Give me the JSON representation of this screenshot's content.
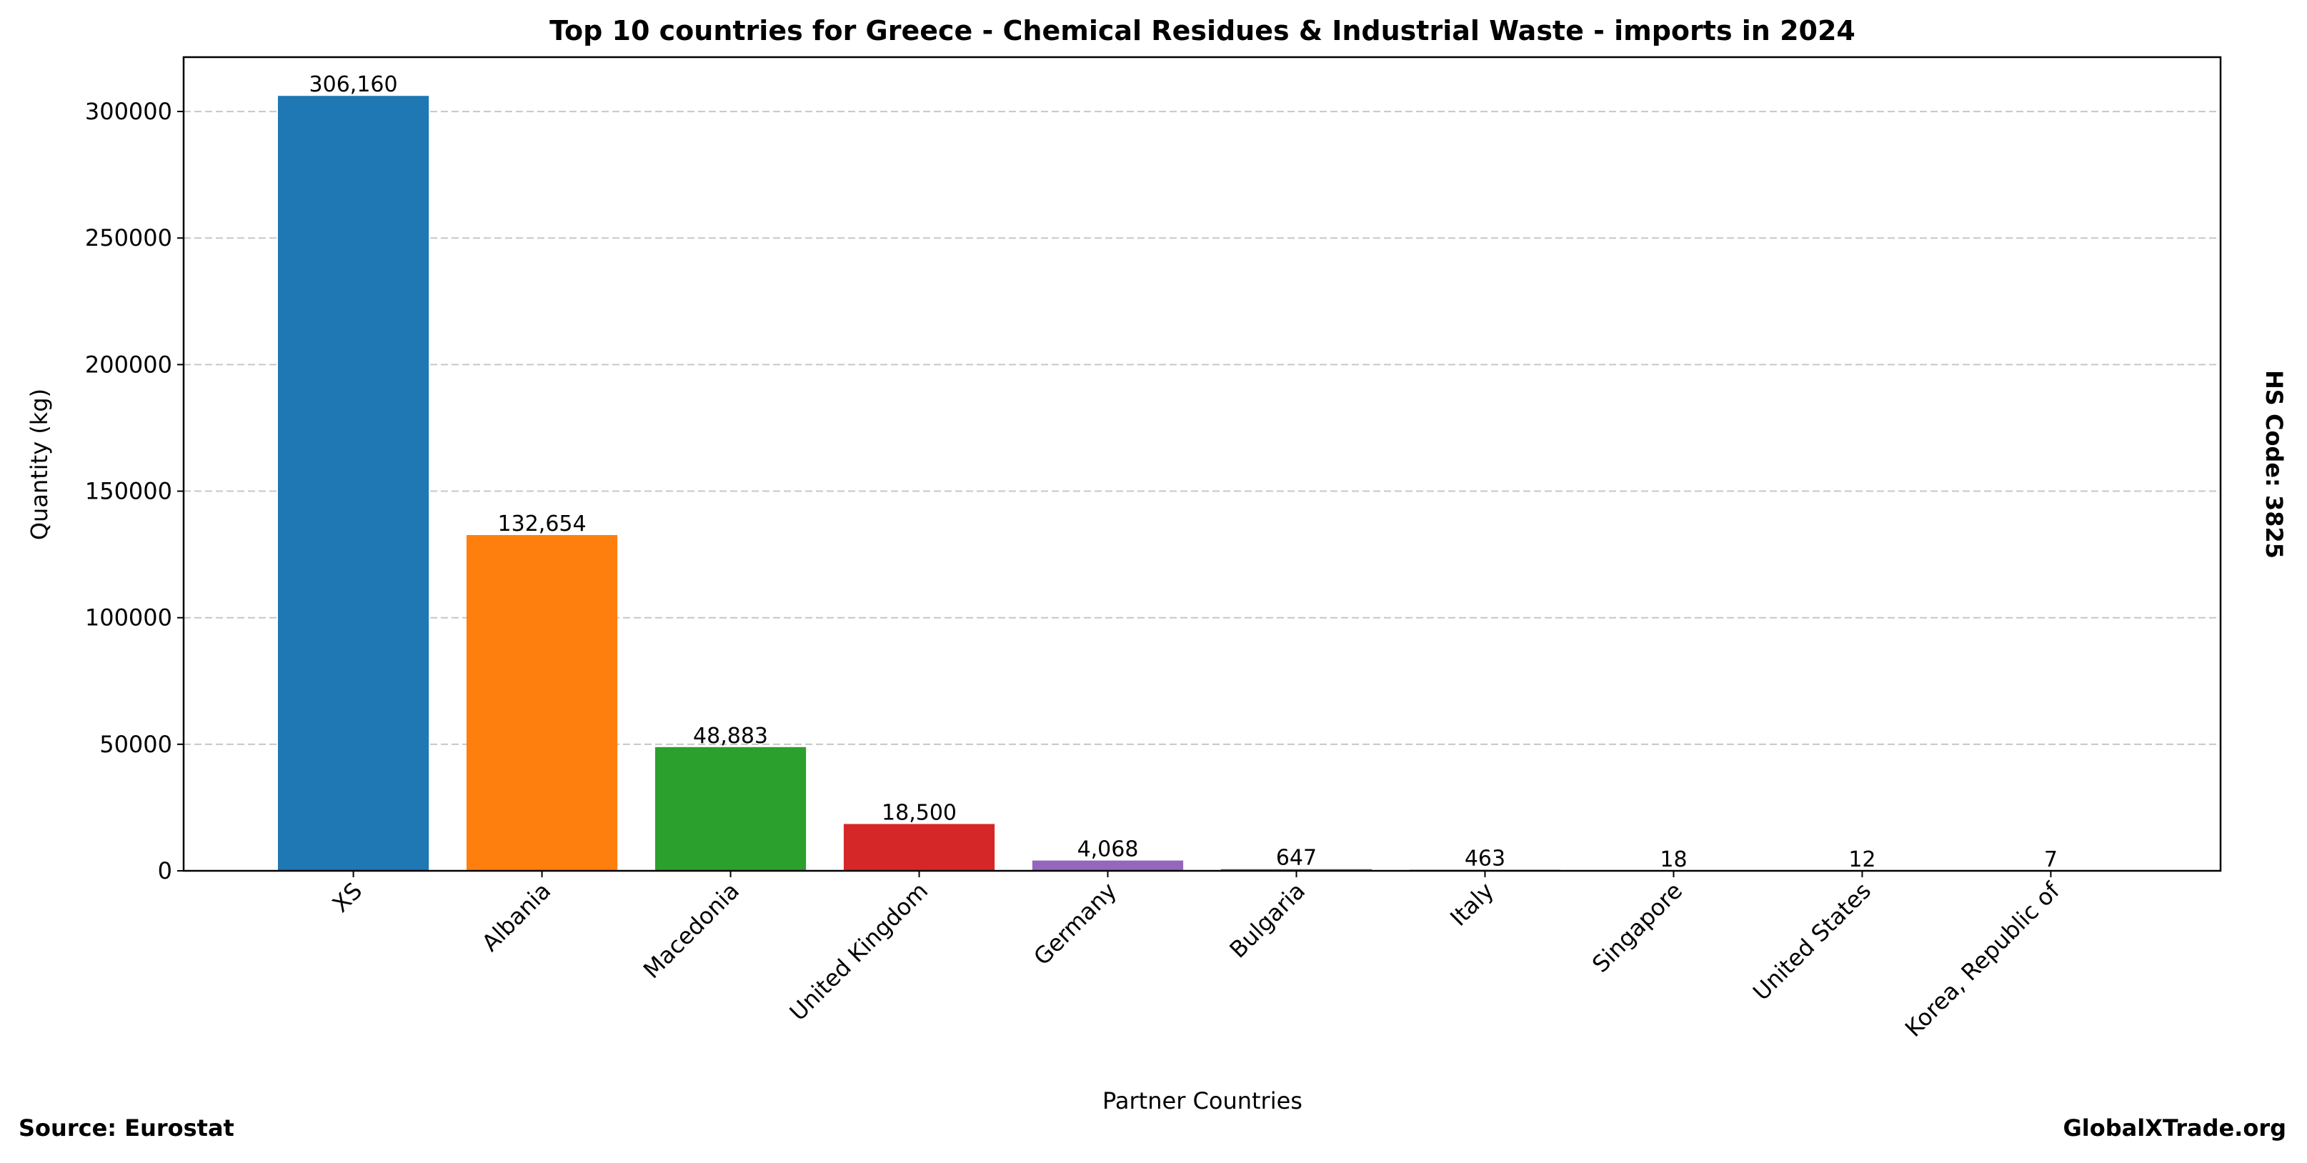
{
  "chart_data": {
    "type": "bar",
    "title": "Top 10 countries for Greece - Chemical Residues & Industrial Waste - imports in 2024",
    "xlabel": "Partner Countries",
    "ylabel": "Quantity (kg)",
    "categories": [
      "XS",
      "Albania",
      "Macedonia",
      "United Kingdom",
      "Germany",
      "Bulgaria",
      "Italy",
      "Singapore",
      "United States",
      "Korea, Republic of"
    ],
    "values": [
      306160,
      132654,
      48883,
      18500,
      4068,
      647,
      463,
      18,
      12,
      7
    ],
    "data_labels": [
      "306,160",
      "132,654",
      "48,883",
      "18,500",
      "4,068",
      "647",
      "463",
      "18",
      "12",
      "7"
    ],
    "colors": [
      "#1f77b4",
      "#ff7f0e",
      "#2ca02c",
      "#d62728",
      "#9467bd",
      "#8c564b",
      "#e377c2",
      "#7f7f7f",
      "#bcbd22",
      "#17becf"
    ],
    "ylim": [
      0,
      321468
    ],
    "yticks": [
      0,
      50000,
      100000,
      150000,
      200000,
      250000,
      300000
    ],
    "ytick_labels": [
      "0",
      "50000",
      "100000",
      "150000",
      "200000",
      "250000",
      "300000"
    ],
    "grid": "y-dashed",
    "legend": "none"
  },
  "annotations": {
    "side_label": "HS Code: 3825",
    "source": "Source: Eurostat",
    "site": "GlobalXTrade.org"
  }
}
